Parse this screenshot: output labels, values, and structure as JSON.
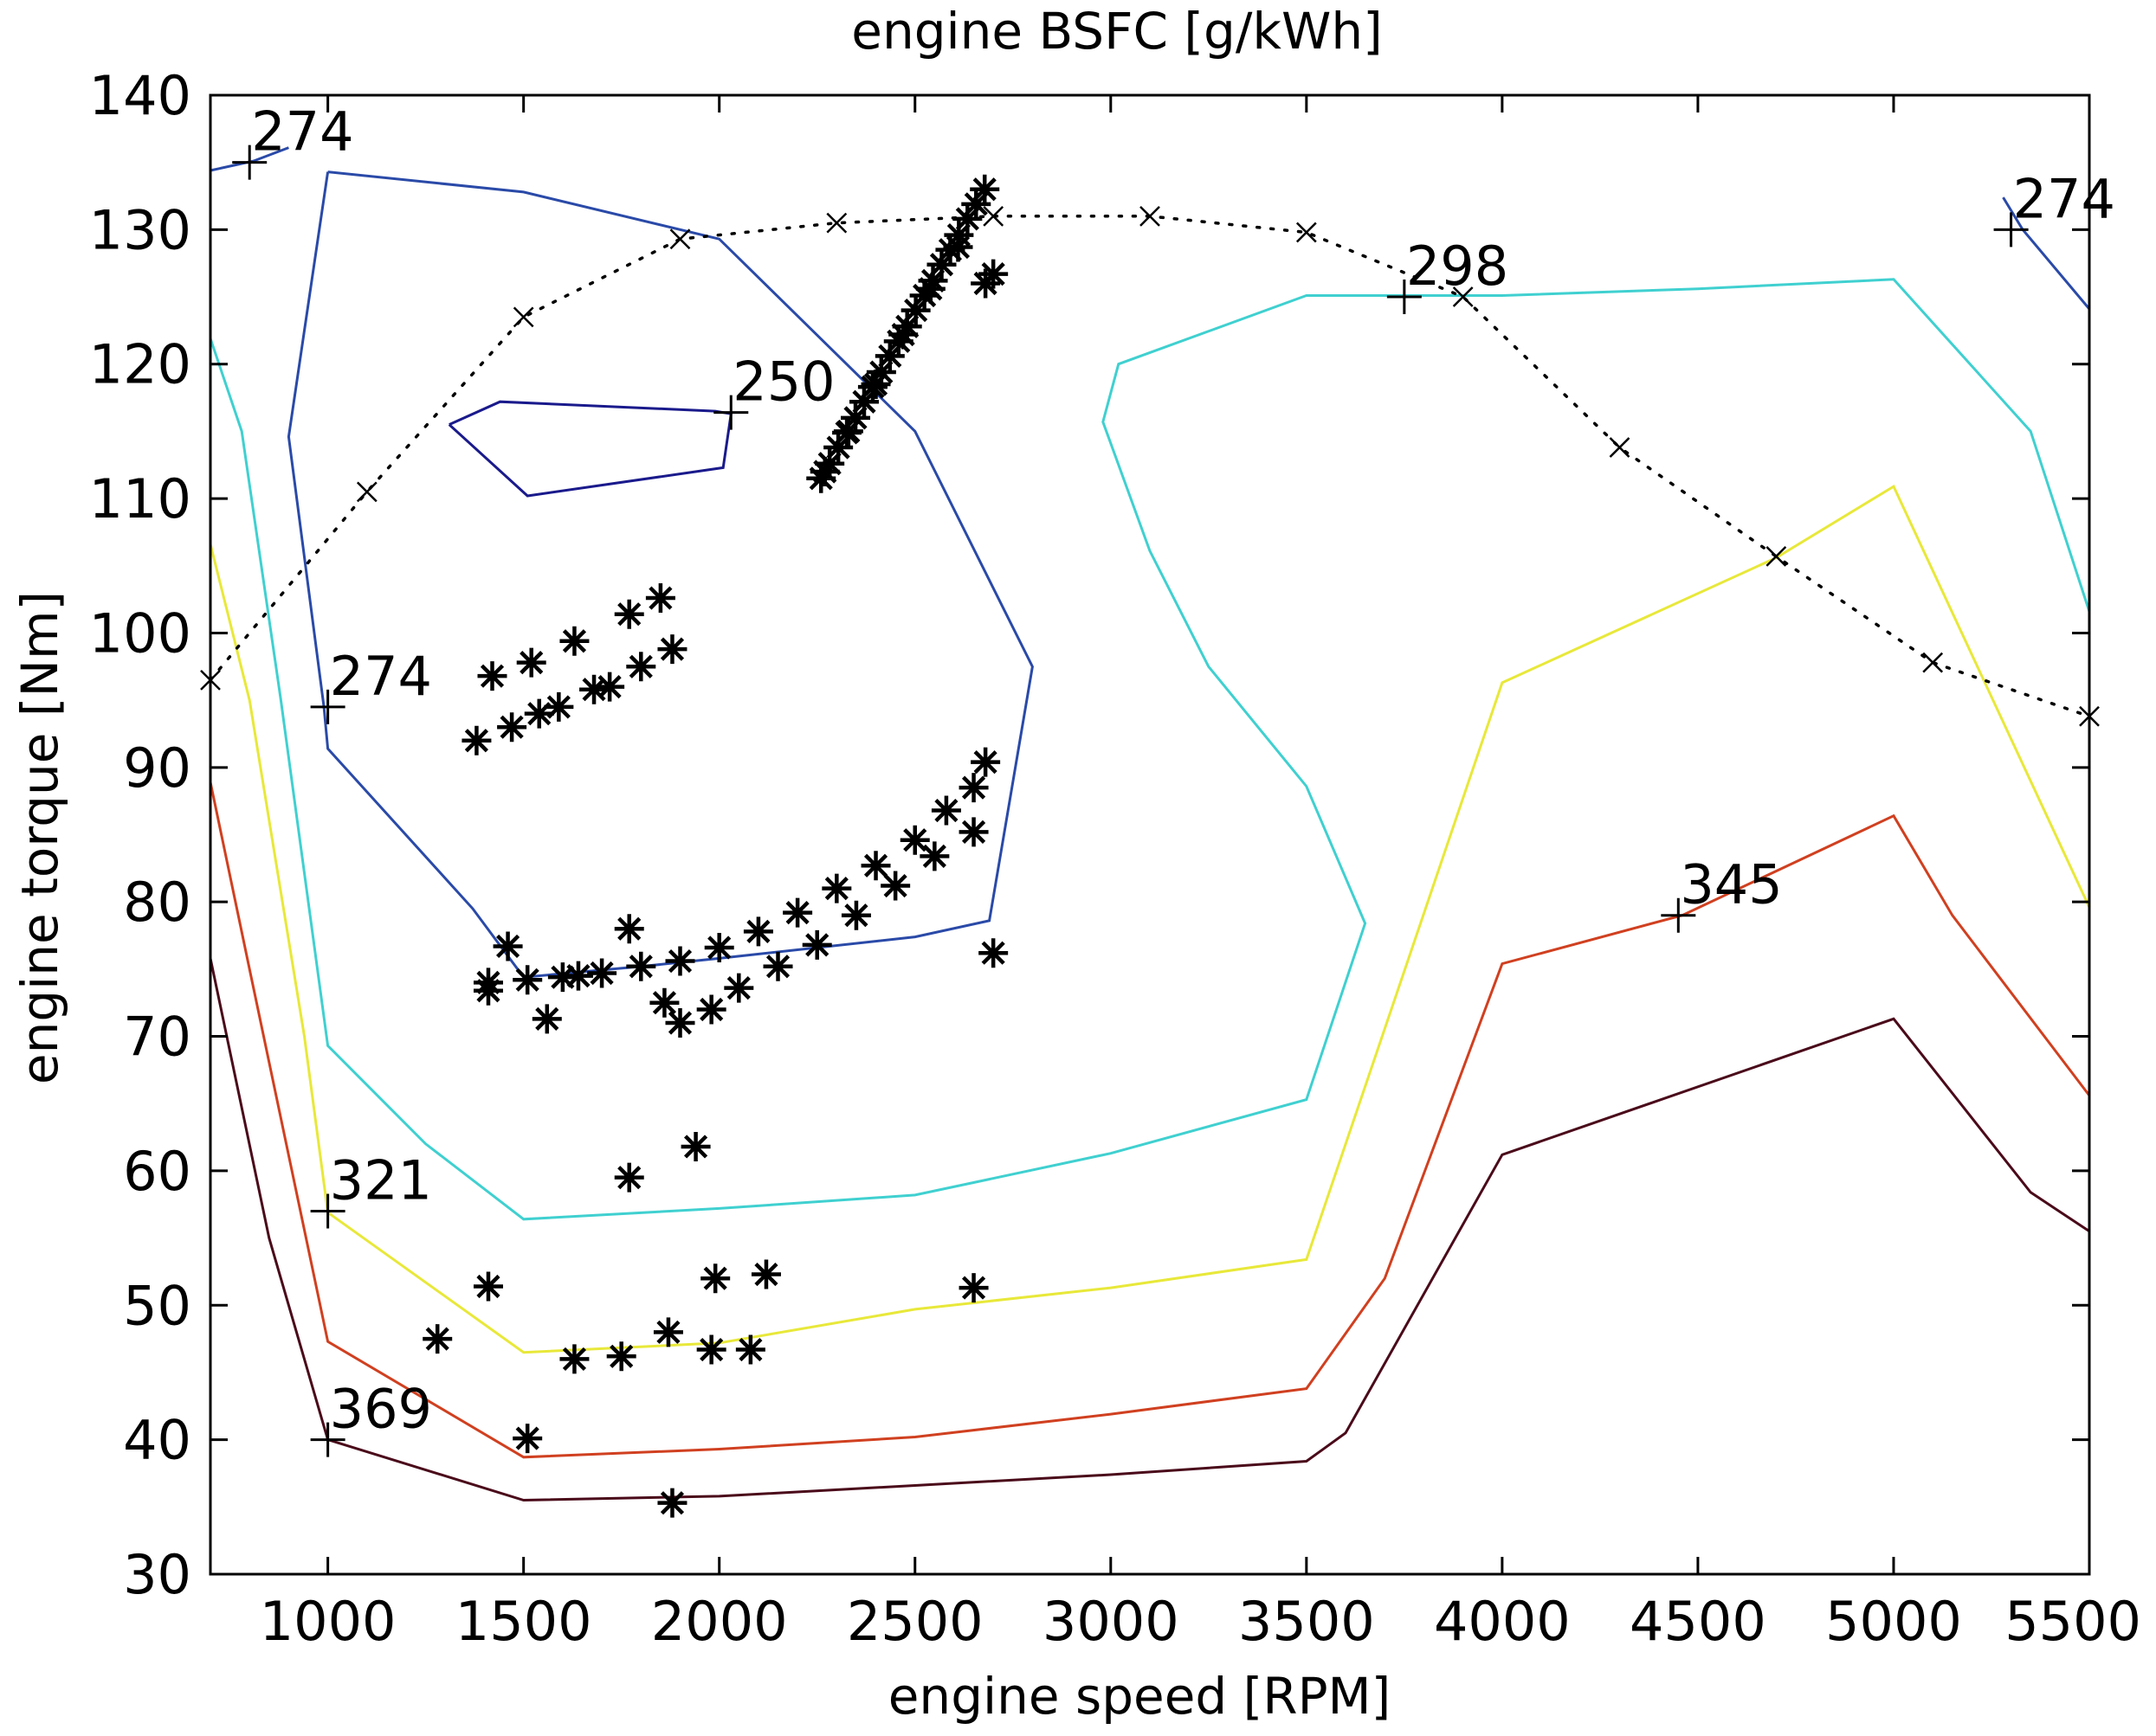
{
  "chart_data": {
    "type": "line",
    "title": "engine BSFC [g/kWh]",
    "xlabel": "engine speed [RPM]",
    "ylabel": "engine torque [Nm]",
    "xlim": [
      700,
      5500
    ],
    "ylim": [
      30,
      140
    ],
    "xticks": [
      "1000",
      "1500",
      "2000",
      "2500",
      "3000",
      "3500",
      "4000",
      "4500",
      "5000",
      "5500"
    ],
    "yticks": [
      "30",
      "40",
      "50",
      "60",
      "70",
      "80",
      "90",
      "100",
      "110",
      "120",
      "130",
      "140"
    ],
    "xtick_values": [
      1000,
      1500,
      2000,
      2500,
      3000,
      3500,
      4000,
      4500,
      5000,
      5500
    ],
    "ytick_values": [
      30,
      40,
      50,
      60,
      70,
      80,
      90,
      100,
      110,
      120,
      130,
      140
    ],
    "grid": false,
    "contours": [
      {
        "level": "250",
        "color": "#1a1a8c",
        "segments": [
          [
            [
              1310,
              115.5
            ],
            [
              1440,
              117.2
            ],
            [
              1990,
              116.5
            ],
            [
              2030,
              116.3
            ],
            [
              2010,
              112.3
            ],
            [
              1510,
              110.2
            ],
            [
              1310,
              115.5
            ]
          ]
        ]
      },
      {
        "level": "274",
        "color": "#2a4aa8",
        "segments": [
          [
            [
              700,
              134.4
            ],
            [
              810,
              135.1
            ],
            [
              900,
              136.1
            ]
          ],
          [
            [
              5280,
              132.4
            ],
            [
              5330,
              130
            ],
            [
              5500,
              124.1
            ]
          ],
          [
            [
              1000,
              134.3
            ],
            [
              1500,
              132.8
            ],
            [
              2000,
              129.3
            ],
            [
              2500,
              115
            ],
            [
              2800,
              97.5
            ],
            [
              2690,
              78.6
            ],
            [
              2500,
              77.4
            ],
            [
              2000,
              75.8
            ],
            [
              1800,
              75.2
            ],
            [
              1500,
              74.4
            ],
            [
              1370,
              79.5
            ],
            [
              1000,
              91.4
            ],
            [
              990,
              94.5
            ],
            [
              900,
              114.6
            ],
            [
              1000,
              134.3
            ]
          ]
        ]
      },
      {
        "level": "298",
        "color": "#40d0d0",
        "segments": [
          [
            [
              700,
              121.9
            ],
            [
              780,
              115
            ],
            [
              880,
              95
            ],
            [
              1000,
              69.3
            ],
            [
              1250,
              62
            ],
            [
              1500,
              56.4
            ],
            [
              2000,
              57.2
            ],
            [
              2500,
              58.2
            ],
            [
              3000,
              61.3
            ],
            [
              3500,
              65.3
            ],
            [
              3650,
              78.4
            ],
            [
              3500,
              88.6
            ],
            [
              3250,
              97.5
            ],
            [
              3100,
              106.1
            ],
            [
              2980,
              115.7
            ],
            [
              3020,
              120
            ],
            [
              3500,
              125.1
            ],
            [
              3750,
              125.1
            ],
            [
              4000,
              125.1
            ],
            [
              4500,
              125.6
            ],
            [
              5000,
              126.3
            ],
            [
              5350,
              115
            ],
            [
              5500,
              101.6
            ]
          ]
        ]
      },
      {
        "level": "321",
        "color": "#e8e83a",
        "segments": [
          [
            [
              700,
              106.6
            ],
            [
              800,
              95
            ],
            [
              940,
              70
            ],
            [
              1000,
              56.9
            ],
            [
              1500,
              46.5
            ],
            [
              2000,
              47.2
            ],
            [
              2500,
              49.7
            ],
            [
              3000,
              51.3
            ],
            [
              3500,
              53.4
            ],
            [
              4000,
              96.3
            ],
            [
              4700,
              105.6
            ],
            [
              5000,
              110.9
            ],
            [
              5500,
              79.6
            ]
          ]
        ]
      },
      {
        "level": "345",
        "color": "#d04020",
        "segments": [
          [
            [
              700,
              88.9
            ],
            [
              800,
              75
            ],
            [
              1000,
              47.3
            ],
            [
              1500,
              38.7
            ],
            [
              2000,
              39.3
            ],
            [
              2500,
              40.2
            ],
            [
              3000,
              41.9
            ],
            [
              3500,
              43.8
            ],
            [
              3700,
              52
            ],
            [
              4000,
              75.4
            ],
            [
              4460,
              79
            ],
            [
              5000,
              86.4
            ],
            [
              5150,
              79
            ],
            [
              5500,
              65.6
            ]
          ]
        ]
      },
      {
        "level": "369",
        "color": "#4a0a1a",
        "segments": [
          [
            [
              700,
              75.8
            ],
            [
              850,
              55
            ],
            [
              1000,
              40
            ],
            [
              1500,
              35.5
            ],
            [
              2000,
              35.8
            ],
            [
              2500,
              36.6
            ],
            [
              3000,
              37.4
            ],
            [
              3500,
              38.4
            ],
            [
              3600,
              40.5
            ],
            [
              4000,
              61.2
            ],
            [
              5000,
              71.3
            ],
            [
              5350,
              58.4
            ],
            [
              5500,
              55.5
            ]
          ]
        ]
      }
    ],
    "contour_labels": [
      {
        "text": "274",
        "x": 800,
        "y": 135
      },
      {
        "text": "274",
        "x": 5300,
        "y": 130
      },
      {
        "text": "250",
        "x": 2030,
        "y": 116.4
      },
      {
        "text": "274",
        "x": 1000,
        "y": 94.5
      },
      {
        "text": "298",
        "x": 3750,
        "y": 125
      },
      {
        "text": "321",
        "x": 1000,
        "y": 57
      },
      {
        "text": "345",
        "x": 4450,
        "y": 79
      },
      {
        "text": "369",
        "x": 1000,
        "y": 40
      }
    ],
    "wot_curve": {
      "style": "dotted",
      "marker": "x",
      "x": [
        700,
        1100,
        1500,
        1900,
        2300,
        2700,
        3100,
        3500,
        3900,
        4300,
        4700,
        5100,
        5500
      ],
      "y": [
        96.5,
        110.5,
        123.5,
        129.3,
        130.5,
        131,
        131,
        129.8,
        125,
        113.8,
        105.7,
        97.8,
        93.8
      ]
    },
    "operating_points": {
      "marker": "*",
      "points": [
        [
          2260,
          111.5
        ],
        [
          2282,
          112.6
        ],
        [
          2304,
          113.8
        ],
        [
          2326,
          114.9
        ],
        [
          2348,
          116
        ],
        [
          2370,
          117.2
        ],
        [
          2392,
          118.3
        ],
        [
          2414,
          119.4
        ],
        [
          2436,
          120.6
        ],
        [
          2458,
          121.7
        ],
        [
          2480,
          122.8
        ],
        [
          2502,
          124
        ],
        [
          2524,
          125.1
        ],
        [
          2546,
          126.2
        ],
        [
          2568,
          127.4
        ],
        [
          2590,
          128.5
        ],
        [
          2612,
          129.6
        ],
        [
          2634,
          130.8
        ],
        [
          2656,
          131.9
        ],
        [
          2678,
          133
        ],
        [
          2700,
          126.7
        ],
        [
          2270,
          112
        ],
        [
          2330,
          115
        ],
        [
          2400,
          118.5
        ],
        [
          2470,
          122.2
        ],
        [
          2540,
          125.6
        ],
        [
          2610,
          128.7
        ],
        [
          2680,
          126
        ],
        [
          1380,
          92
        ],
        [
          1470,
          93
        ],
        [
          1540,
          94
        ],
        [
          1590,
          94.5
        ],
        [
          1680,
          95.8
        ],
        [
          1720,
          96
        ],
        [
          1800,
          97.5
        ],
        [
          1880,
          98.8
        ],
        [
          1420,
          96.8
        ],
        [
          1520,
          97.8
        ],
        [
          1630,
          99.4
        ],
        [
          1770,
          101.4
        ],
        [
          1850,
          102.6
        ],
        [
          1460,
          76.7
        ],
        [
          1770,
          78
        ],
        [
          1410,
          74
        ],
        [
          1510,
          74.2
        ],
        [
          1600,
          74.4
        ],
        [
          1700,
          74.7
        ],
        [
          1800,
          75.2
        ],
        [
          1900,
          75.6
        ],
        [
          2000,
          76.6
        ],
        [
          2100,
          77.8
        ],
        [
          2200,
          79.2
        ],
        [
          2300,
          81
        ],
        [
          2400,
          82.7
        ],
        [
          2500,
          84.6
        ],
        [
          2580,
          86.8
        ],
        [
          2650,
          88.5
        ],
        [
          2680,
          90.4
        ],
        [
          1900,
          71
        ],
        [
          1980,
          72
        ],
        [
          2050,
          73.6
        ],
        [
          2150,
          75.2
        ],
        [
          2250,
          76.8
        ],
        [
          2350,
          79
        ],
        [
          2450,
          81.2
        ],
        [
          2550,
          83.4
        ],
        [
          2650,
          85.2
        ],
        [
          2700,
          76.2
        ],
        [
          1410,
          73.4
        ],
        [
          1560,
          71.3
        ],
        [
          1640,
          74.5
        ],
        [
          1860,
          72.5
        ],
        [
          1770,
          59.5
        ],
        [
          1940,
          61.8
        ],
        [
          1410,
          51.4
        ],
        [
          1280,
          47.5
        ],
        [
          1510,
          40.1
        ],
        [
          1630,
          46
        ],
        [
          1750,
          46.2
        ],
        [
          1870,
          48
        ],
        [
          1980,
          46.7
        ],
        [
          2080,
          46.7
        ],
        [
          1990,
          52
        ],
        [
          2120,
          52.3
        ],
        [
          2650,
          51.3
        ],
        [
          1880,
          35.3
        ]
      ]
    }
  }
}
